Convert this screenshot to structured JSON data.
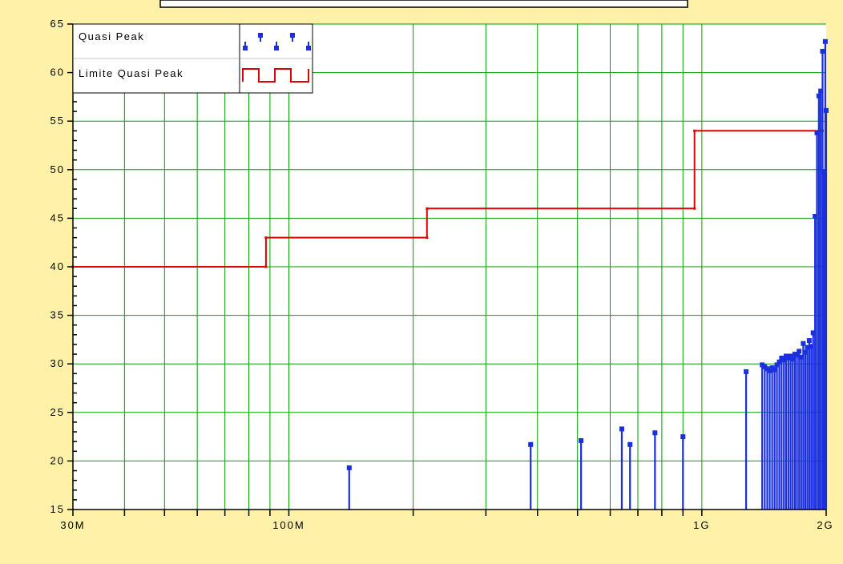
{
  "colors": {
    "background": "#FFF2A8",
    "plot_area": "#FFFFFF",
    "grid": "#00A000",
    "limit_line": "#E00000",
    "peak_marks": "#1A2FE0",
    "axis": "#000000"
  },
  "legend": {
    "items": [
      {
        "label": "Quasi Peak",
        "icon": "quasi-peak-swatch-icon"
      },
      {
        "label": "Limite Quasi Peak",
        "icon": "limit-line-swatch-icon"
      }
    ]
  },
  "chart_data": {
    "type": "scatter",
    "x_scale": "log",
    "xlim": [
      30,
      2000
    ],
    "ylim": [
      15,
      65
    ],
    "x_ticks": [
      {
        "value": 30,
        "label": "30M"
      },
      {
        "value": 100,
        "label": "100M"
      },
      {
        "value": 1000,
        "label": "1G"
      },
      {
        "value": 2000,
        "label": "2G"
      }
    ],
    "x_minor_grid": [
      40,
      50,
      60,
      70,
      80,
      90,
      100,
      200,
      300,
      400,
      500,
      600,
      700,
      800,
      900,
      1000
    ],
    "y_ticks": [
      15,
      20,
      25,
      30,
      35,
      40,
      45,
      50,
      55,
      60,
      65
    ],
    "grid": true,
    "legend_position": "top-left",
    "series": [
      {
        "name": "Quasi Peak",
        "render": "stem",
        "x": [
          140,
          385,
          510,
          640,
          670,
          770,
          900,
          1280,
          1400,
          1420,
          1440,
          1460,
          1480,
          1500,
          1520,
          1540,
          1560,
          1580,
          1600,
          1620,
          1640,
          1660,
          1680,
          1700,
          1720,
          1740,
          1760,
          1780,
          1800,
          1820,
          1840,
          1860,
          1880,
          1900,
          1920,
          1940,
          1960,
          1975,
          1990,
          2000
        ],
        "y": [
          19.3,
          21.7,
          22.1,
          23.3,
          21.7,
          22.9,
          22.5,
          29.2,
          29.9,
          29.7,
          29.5,
          29.3,
          29.6,
          29.4,
          29.9,
          30.2,
          30.6,
          30.4,
          30.8,
          30.6,
          30.8,
          30.5,
          31.0,
          30.9,
          31.3,
          30.7,
          32.1,
          31.2,
          31.7,
          32.4,
          31.8,
          33.2,
          45.2,
          53.8,
          57.6,
          58.1,
          62.2,
          49.8,
          63.2,
          56.1
        ]
      },
      {
        "name": "Limite Quasi Peak",
        "render": "step",
        "x": [
          30,
          88,
          88,
          216,
          216,
          960,
          960,
          1960
        ],
        "y": [
          40,
          40,
          43,
          43,
          46,
          46,
          54,
          54
        ]
      }
    ]
  }
}
